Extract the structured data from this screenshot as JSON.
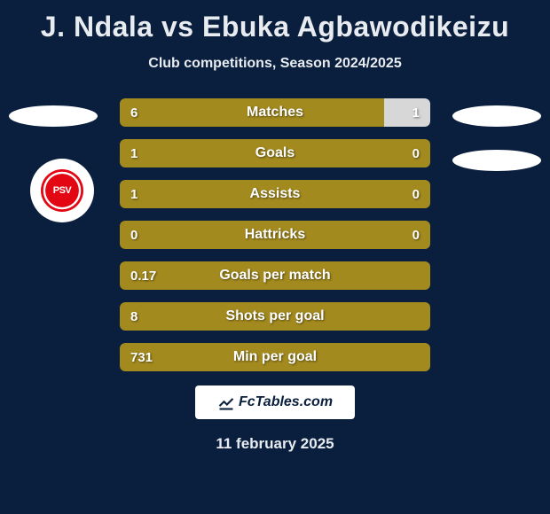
{
  "title": "J. Ndala vs Ebuka Agbawodikeizu",
  "subtitle": "Club competitions, Season 2024/2025",
  "date": "11 february 2025",
  "footer_brand": "FcTables.com",
  "club_logo_text": "PSV",
  "colors": {
    "left_bar": "#a38a1f",
    "right_bar": "#d7d7d7",
    "full_bar": "#a38a1f",
    "background": "#0a1f3d"
  },
  "stats": [
    {
      "label": "Matches",
      "left_val": "6",
      "right_val": "1",
      "left_pct": 85,
      "right_pct": 15,
      "right_color": "#d7d7d7"
    },
    {
      "label": "Goals",
      "left_val": "1",
      "right_val": "0",
      "left_pct": 100,
      "right_pct": 0
    },
    {
      "label": "Assists",
      "left_val": "1",
      "right_val": "0",
      "left_pct": 100,
      "right_pct": 0
    },
    {
      "label": "Hattricks",
      "left_val": "0",
      "right_val": "0",
      "left_pct": 100,
      "right_pct": 0
    },
    {
      "label": "Goals per match",
      "left_val": "0.17",
      "right_val": "",
      "left_pct": 100,
      "right_pct": 0
    },
    {
      "label": "Shots per goal",
      "left_val": "8",
      "right_val": "",
      "left_pct": 100,
      "right_pct": 0
    },
    {
      "label": "Min per goal",
      "left_val": "731",
      "right_val": "",
      "left_pct": 100,
      "right_pct": 0
    }
  ]
}
